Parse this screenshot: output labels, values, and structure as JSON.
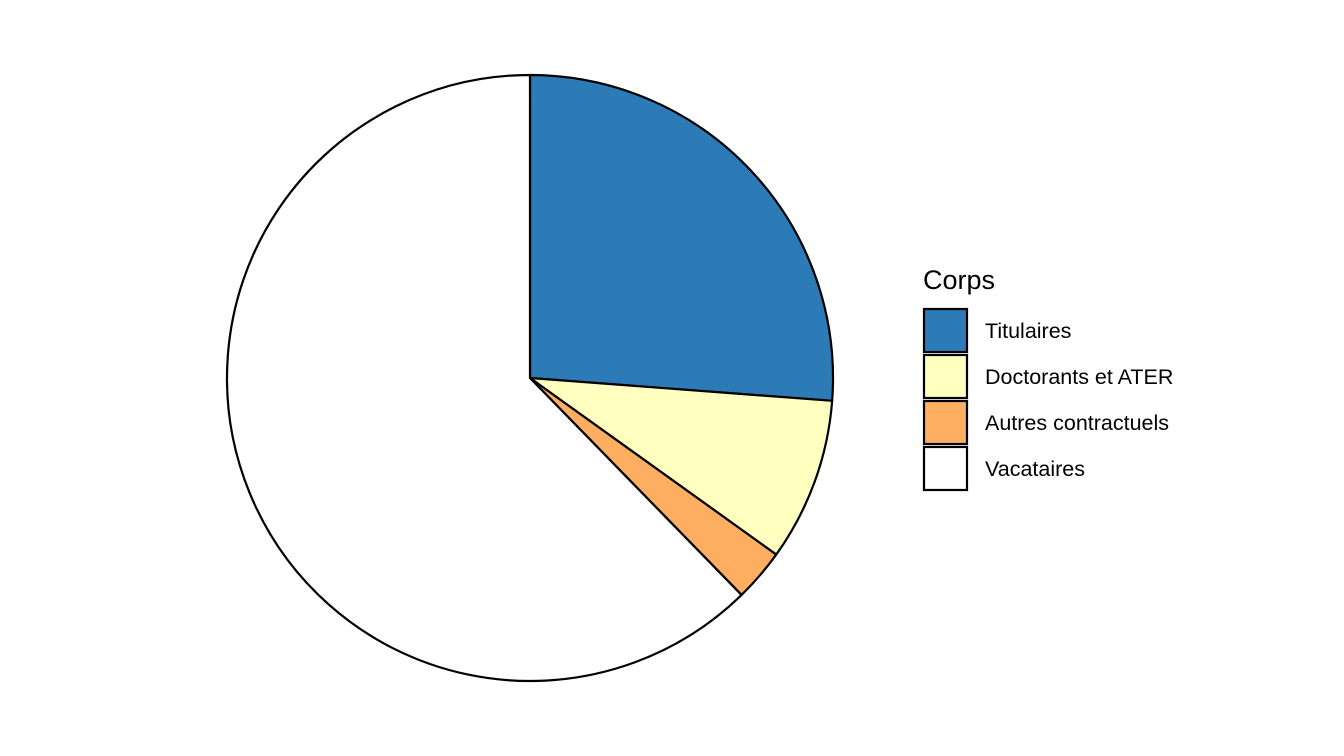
{
  "chart_data": {
    "type": "pie",
    "title": "",
    "legend": {
      "title": "Corps",
      "position": "right"
    },
    "slices": [
      {
        "label": "Titulaires",
        "value": 26.2,
        "color": "#2c7bb6"
      },
      {
        "label": "Doctorants et ATER",
        "value": 8.7,
        "color": "#ffffbf"
      },
      {
        "label": "Autres contractuels",
        "value": 2.8,
        "color": "#fdae61"
      },
      {
        "label": "Vacataires",
        "value": 62.3,
        "color": "#ffffff"
      }
    ],
    "start_angle": "12 o'clock",
    "direction": "clockwise",
    "outline_color": "#000000"
  }
}
